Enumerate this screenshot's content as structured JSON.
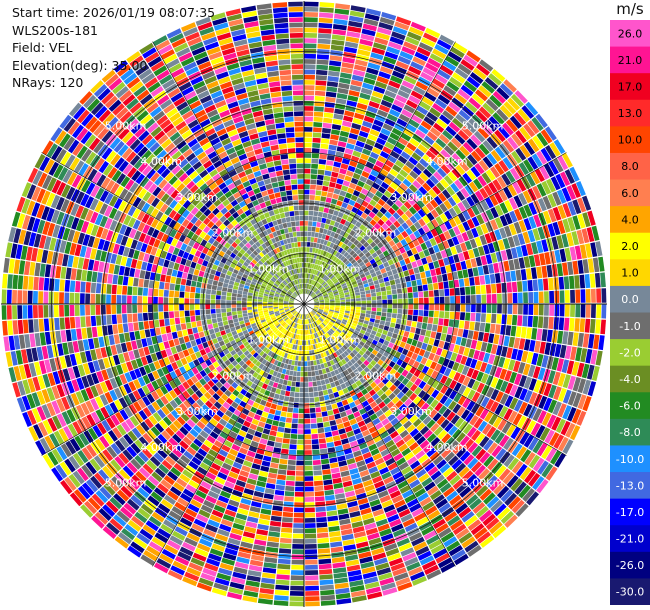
{
  "header": {
    "lines": [
      "Start time: 2026/01/19 08:07:35",
      "WLS200s-181",
      "Field: VEL",
      "Elevation(deg): 35.00",
      "NRays: 120"
    ]
  },
  "chart_data": {
    "type": "heatmap",
    "projection": "polar-ppi",
    "field": "VEL",
    "nrays": 120,
    "range_rings_km": [
      1.0,
      2.0,
      3.0,
      4.0,
      5.0
    ],
    "ring_labels": [
      "1.00km",
      "2.00km",
      "3.00km",
      "4.00km",
      "5.00km"
    ],
    "max_range_km": 6.0,
    "colorbar": {
      "unit": "m/s",
      "bin_labels": [
        "26.0",
        "21.0",
        "17.0",
        "13.0",
        "10.0",
        "8.0",
        "6.0",
        "4.0",
        "2.0",
        "1.0",
        "0.0",
        "-1.0",
        "-2.0",
        "-4.0",
        "-6.0",
        "-8.0",
        "-10.0",
        "-13.0",
        "-17.0",
        "-21.0",
        "-26.0",
        "-30.0"
      ],
      "colors": [
        "#ff55cc",
        "#ff1493",
        "#f00020",
        "#ff2a2a",
        "#ff4500",
        "#ff6347",
        "#ff7f50",
        "#ffa500",
        "#ffff00",
        "#ffd700",
        "#778899",
        "#6e6e6e",
        "#9acd32",
        "#6b8e23",
        "#228b22",
        "#2e8b57",
        "#1e90ff",
        "#4169e1",
        "#0000ff",
        "#0000cd",
        "#000080",
        "#191970"
      ]
    }
  }
}
